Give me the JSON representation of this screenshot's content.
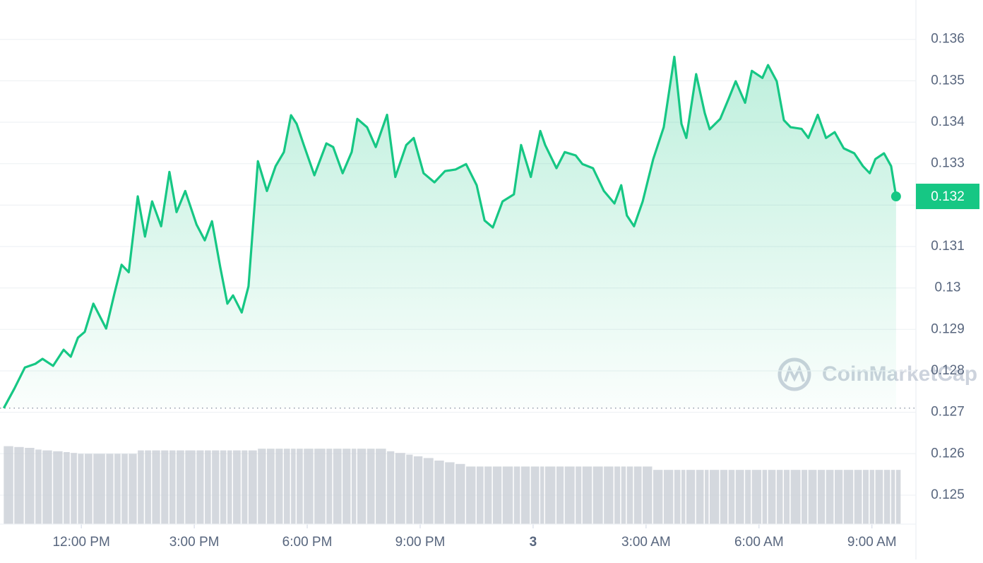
{
  "chart_data": {
    "type": "line",
    "color": "#16c784",
    "x": [
      9.94,
      10.22,
      10.5,
      10.78,
      10.97,
      11.25,
      11.53,
      11.72,
      11.91,
      12.09,
      12.32,
      12.66,
      12.88,
      13.07,
      13.26,
      13.5,
      13.69,
      13.88,
      14.12,
      14.34,
      14.53,
      14.76,
      15.06,
      15.28,
      15.47,
      15.69,
      15.88,
      16.03,
      16.26,
      16.44,
      16.69,
      16.93,
      17.16,
      17.38,
      17.57,
      17.72,
      17.91,
      18.19,
      18.51,
      18.69,
      18.94,
      19.18,
      19.33,
      19.59,
      19.82,
      20.12,
      20.34,
      20.63,
      20.83,
      21.09,
      21.38,
      21.66,
      21.94,
      22.22,
      22.5,
      22.71,
      22.93,
      23.19,
      23.49,
      23.68,
      23.94,
      24.19,
      24.32,
      24.62,
      24.84,
      25.13,
      25.31,
      25.59,
      25.88,
      26.16,
      26.34,
      26.49,
      26.68,
      26.91,
      27.19,
      27.47,
      27.75,
      27.94,
      28.07,
      28.33,
      28.56,
      28.69,
      28.97,
      29.19,
      29.38,
      29.63,
      29.81,
      30.09,
      30.24,
      30.47,
      30.66,
      30.84,
      31.13,
      31.31,
      31.56,
      31.78,
      32.01,
      32.25,
      32.53,
      32.76,
      32.94,
      33.09,
      33.32,
      33.51,
      33.64
    ],
    "values": [
      0.1271,
      0.12757,
      0.12808,
      0.12817,
      0.12829,
      0.12812,
      0.12851,
      0.12834,
      0.1288,
      0.12894,
      0.12962,
      0.12902,
      0.12987,
      0.13056,
      0.13038,
      0.13221,
      0.13124,
      0.13209,
      0.13149,
      0.1328,
      0.13183,
      0.13234,
      0.13153,
      0.13115,
      0.13161,
      0.1305,
      0.12962,
      0.12982,
      0.12941,
      0.13004,
      0.13306,
      0.13234,
      0.13294,
      0.13328,
      0.13417,
      0.13396,
      0.13345,
      0.13272,
      0.13349,
      0.1334,
      0.13277,
      0.13328,
      0.13408,
      0.13388,
      0.1334,
      0.13418,
      0.13268,
      0.13345,
      0.13362,
      0.13277,
      0.13255,
      0.13282,
      0.13286,
      0.13299,
      0.13248,
      0.13163,
      0.13146,
      0.13209,
      0.13226,
      0.13345,
      0.13268,
      0.13379,
      0.13345,
      0.13289,
      0.13328,
      0.1332,
      0.13299,
      0.13289,
      0.13234,
      0.13204,
      0.13248,
      0.13175,
      0.13149,
      0.13209,
      0.13311,
      0.13388,
      0.13558,
      0.13396,
      0.13362,
      0.13516,
      0.13422,
      0.13383,
      0.13408,
      0.13456,
      0.13499,
      0.13447,
      0.13524,
      0.13507,
      0.13538,
      0.13499,
      0.13405,
      0.13388,
      0.13384,
      0.13362,
      0.13418,
      0.13362,
      0.13376,
      0.13337,
      0.13325,
      0.13294,
      0.13277,
      0.13311,
      0.13325,
      0.13294,
      0.13221
    ],
    "last_value_label": "0.132",
    "baseline": 0.1271,
    "xlim": [
      9.84,
      34.13
    ],
    "xticks": [
      {
        "value": 12,
        "label": "12:00 PM"
      },
      {
        "value": 15,
        "label": "3:00 PM"
      },
      {
        "value": 18,
        "label": "6:00 PM"
      },
      {
        "value": 21,
        "label": "9:00 PM"
      },
      {
        "value": 24,
        "label": "3"
      },
      {
        "value": 27,
        "label": "3:00 AM"
      },
      {
        "value": 30,
        "label": "6:00 AM"
      },
      {
        "value": 33,
        "label": "9:00 AM"
      }
    ],
    "ylim": [
      0.1243,
      0.13695
    ],
    "yticks": [
      0.125,
      0.126,
      0.127,
      0.128,
      0.129,
      0.13,
      0.131,
      0.132,
      0.133,
      0.134,
      0.135,
      0.136
    ],
    "grid": true,
    "volume": {
      "color": "#c9ced6",
      "ylim": [
        0,
        100
      ],
      "values": [
        92,
        91,
        90,
        88,
        87,
        86,
        85,
        84,
        83,
        83,
        83,
        83,
        83,
        83,
        83,
        87,
        87,
        87,
        87,
        87,
        87,
        87,
        87,
        87,
        87,
        87,
        87,
        87,
        87,
        87,
        89,
        89,
        89,
        89,
        89,
        89,
        89,
        89,
        89,
        89,
        89,
        89,
        89,
        89,
        89,
        86,
        84,
        82,
        80,
        78,
        75,
        73,
        71,
        68,
        68,
        68,
        68,
        68,
        68,
        68,
        68,
        68,
        68,
        68,
        68,
        68,
        68,
        68,
        68,
        68,
        68,
        68,
        68,
        68,
        64,
        64,
        64,
        64,
        64,
        64,
        64,
        64,
        64,
        64,
        64,
        64,
        64,
        64,
        64,
        64,
        64,
        64,
        64,
        64,
        64,
        64,
        64,
        64,
        64,
        64,
        64,
        64,
        64,
        64,
        64
      ]
    },
    "watermark": "CoinMarketCap"
  }
}
